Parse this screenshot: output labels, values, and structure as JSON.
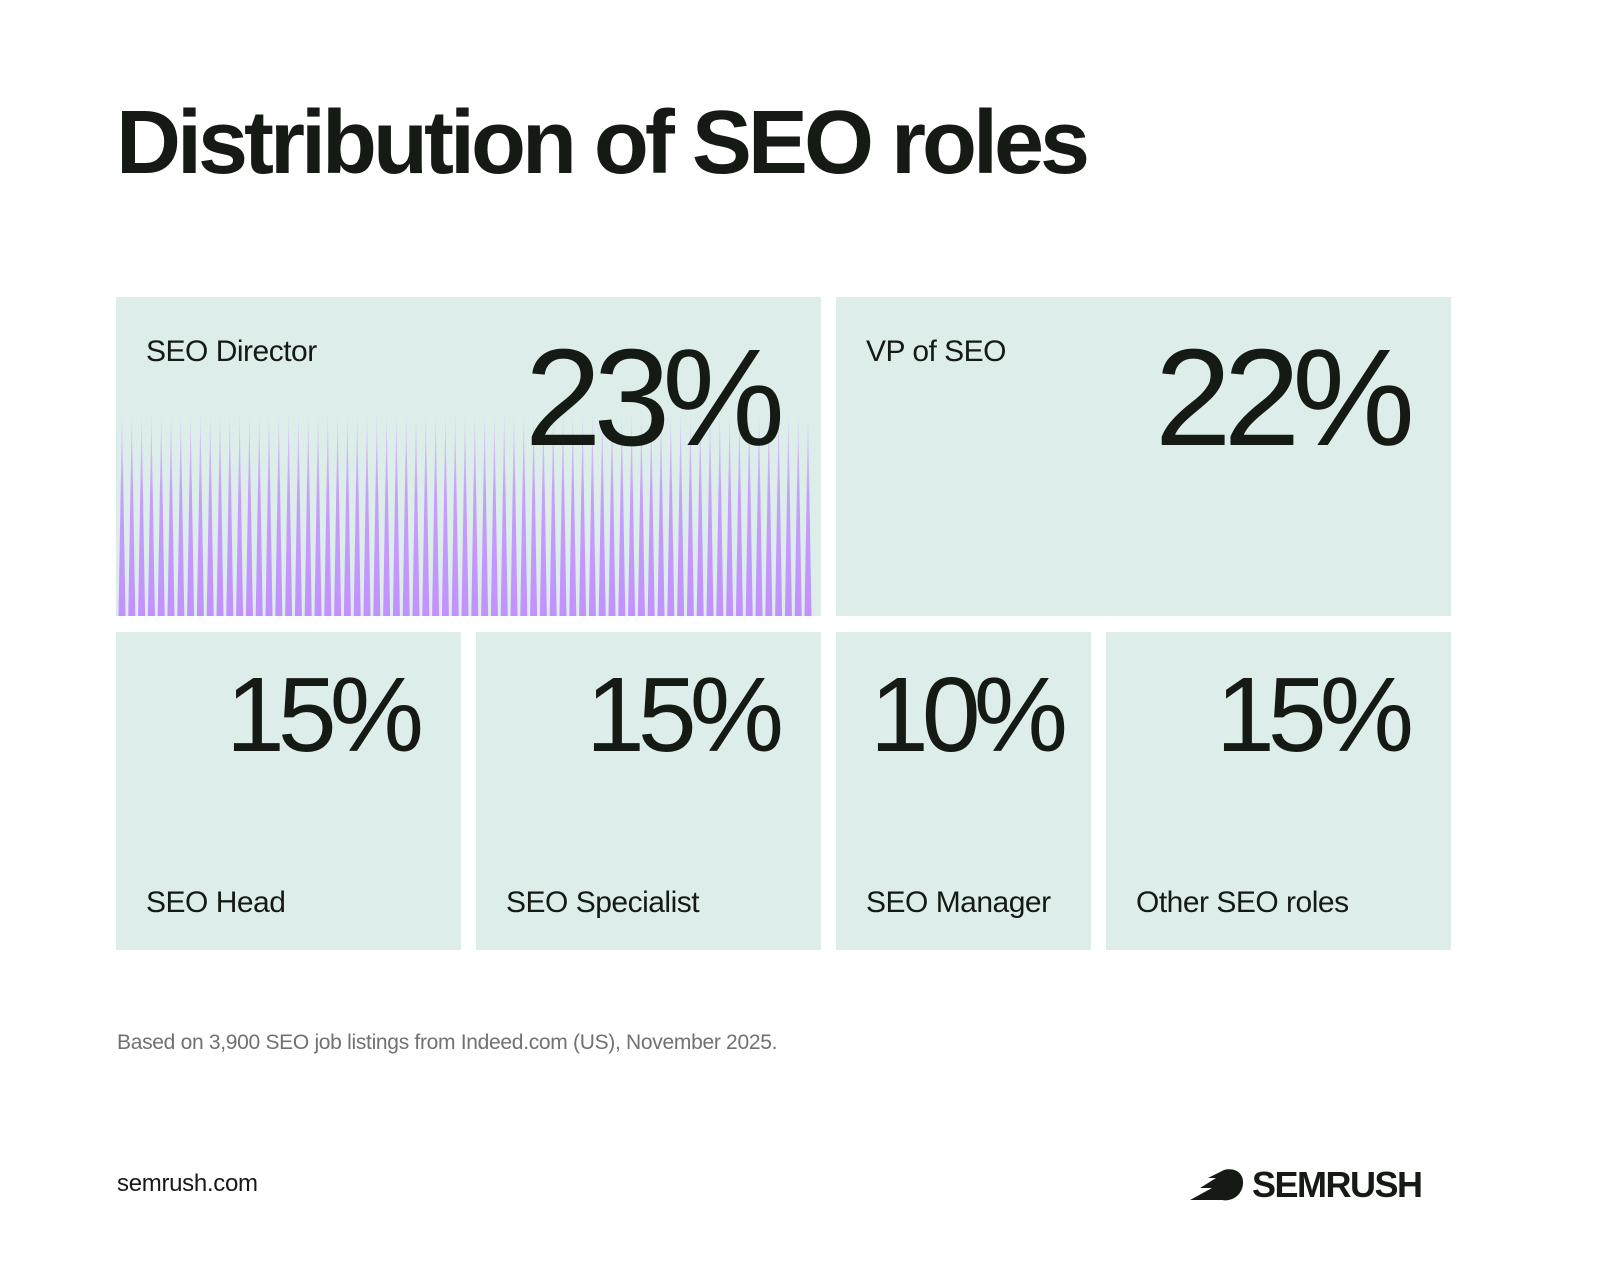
{
  "title": "Distribution of SEO roles",
  "chart_data": {
    "type": "table",
    "title": "Distribution of SEO roles",
    "unit": "%",
    "categories": [
      "SEO Director",
      "VP of SEO",
      "SEO Head",
      "SEO Specialist",
      "SEO Manager",
      "Other SEO roles"
    ],
    "values": [
      23,
      22,
      15,
      15,
      10,
      15
    ],
    "labels": [
      "23%",
      "22%",
      "15%",
      "15%",
      "10%",
      "15%"
    ],
    "highlighted": "SEO Director"
  },
  "colors": {
    "tile": "#dcedea",
    "highlight": "#c08cff",
    "text": "#161a15"
  },
  "footnote": "Based on 3,900 SEO job listings from Indeed.com (US), November 2025.",
  "footer": {
    "site": "semrush.com",
    "logo": "SEMRUSH"
  }
}
